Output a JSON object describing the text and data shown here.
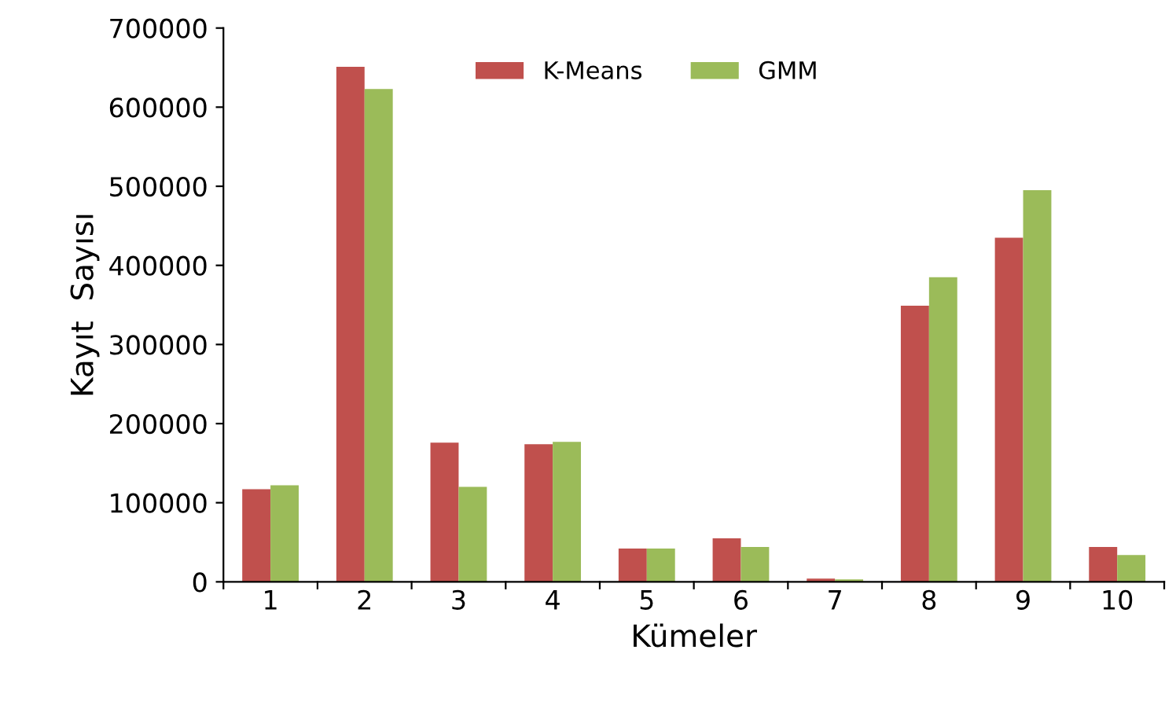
{
  "chart_data": {
    "type": "bar",
    "xlabel": "Kümeler",
    "ylabel": "Kayıt  Sayısı",
    "categories": [
      "1",
      "2",
      "3",
      "4",
      "5",
      "6",
      "7",
      "8",
      "9",
      "10"
    ],
    "series": [
      {
        "name": "K-Means",
        "color": "#c0504d",
        "values": [
          117000,
          651000,
          176000,
          174000,
          42000,
          55000,
          4000,
          349000,
          435000,
          44000
        ]
      },
      {
        "name": "GMM",
        "color": "#9bbb59",
        "values": [
          122000,
          623000,
          120000,
          177000,
          42000,
          44000,
          3000,
          385000,
          495000,
          34000
        ]
      }
    ],
    "ylim": [
      0,
      700000
    ],
    "yticks": [
      0,
      100000,
      200000,
      300000,
      400000,
      500000,
      600000,
      700000
    ],
    "grid": false,
    "legend": "top"
  }
}
